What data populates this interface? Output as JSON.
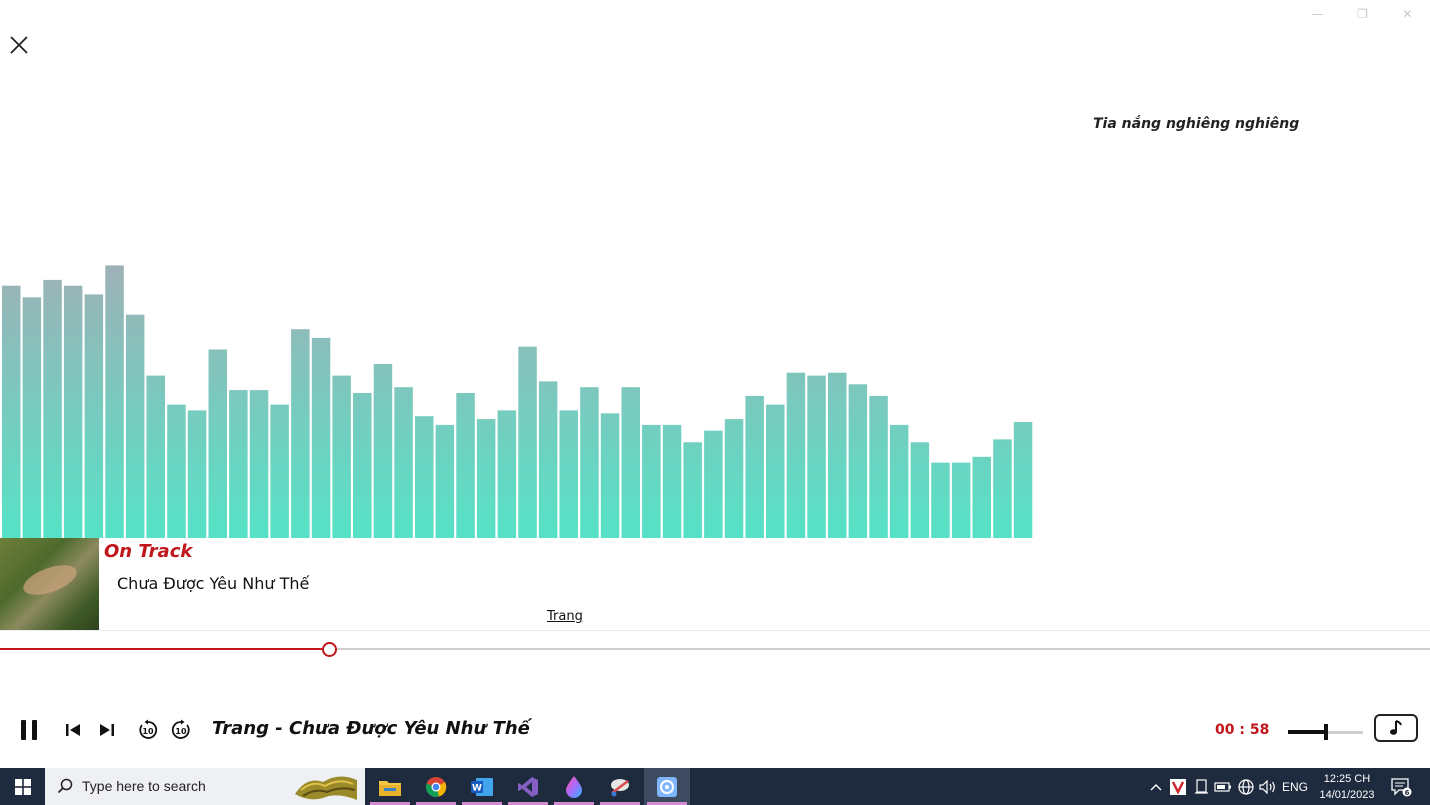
{
  "window": {
    "minimize_glyph": "—",
    "restore_glyph": "❐",
    "close_glyph": "✕"
  },
  "lyric_line": "Tia nắng nghiêng nghiêng",
  "visualizer": {
    "bar_levels": [
      0.87,
      0.83,
      0.89,
      0.87,
      0.84,
      0.94,
      0.77,
      0.56,
      0.46,
      0.44,
      0.65,
      0.51,
      0.51,
      0.46,
      0.72,
      0.69,
      0.56,
      0.5,
      0.6,
      0.52,
      0.42,
      0.39,
      0.5,
      0.41,
      0.44,
      0.66,
      0.54,
      0.44,
      0.52,
      0.43,
      0.52,
      0.39,
      0.39,
      0.33,
      0.37,
      0.41,
      0.49,
      0.46,
      0.57,
      0.56,
      0.57,
      0.53,
      0.49,
      0.39,
      0.33,
      0.26,
      0.26,
      0.28,
      0.34,
      0.4
    ],
    "color_top": "#a2aeb5",
    "color_bottom": "#55e2c6"
  },
  "now_playing": {
    "section_label": "On Track",
    "title": "Chưa Được Yêu Như Thế",
    "artist": "Trang",
    "progress": 0.23
  },
  "controls": {
    "now_label": "Trang - Chưa Được Yêu Như Thế",
    "elapsed": "00 : 58",
    "volume": 0.5,
    "skip_back_seconds": "10",
    "skip_forward_seconds": "10"
  },
  "colors": {
    "accent": "#c0161c",
    "taskbar": "#1e2a3d"
  },
  "taskbar": {
    "search_placeholder": "Type here to search",
    "apps": [
      "file-explorer-icon",
      "chrome-icon",
      "word-icon",
      "visual-studio-icon",
      "paint3d-icon",
      "snipping-icon",
      "music-player-icon"
    ],
    "language": "ENG",
    "time": "12:25 CH",
    "date": "14/01/2023",
    "notification_count": "6"
  }
}
